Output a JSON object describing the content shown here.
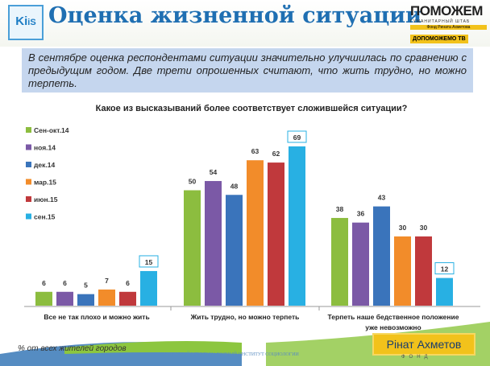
{
  "header": {
    "title": "Оценка жизненной ситуации",
    "logo_text": "KIIS",
    "brand": {
      "name": "ПОМОЖЕМ",
      "line2": "ГУМАНИТАРНЫЙ ШТАБ",
      "line3": "Фонд Рината Ахметова",
      "line4": "ДОПОМОЖЕМО ТВ"
    }
  },
  "note": "В сентябре оценка респондентами ситуации значительно улучшилась по сравнению с предыдущим годом. Две трети опрошенных считают, что жить трудно, но можно терпеть.",
  "footer": {
    "unit_note": "% от всех жителей городов",
    "institute": "КИЕВСКИЙ МЕЖДУНАРОДНЫЙ ИНСТИТУТ СОЦИОЛОГИИ",
    "fund_name": "Рінат Ахметов",
    "fund_sub": "ФОНД"
  },
  "chart_data": {
    "type": "bar",
    "title": "Какое из высказываний более соответствует сложившейся ситуации?",
    "categories": [
      "Все не так плохо и можно жить",
      "Жить трудно, но можно терпеть",
      "Терпеть наше бедственное положение уже невозможно"
    ],
    "series": [
      {
        "name": "Сен-окт.14",
        "color": "#8cbd3f",
        "values": [
          6,
          50,
          38
        ]
      },
      {
        "name": "ноя.14",
        "color": "#7b59a6",
        "values": [
          6,
          54,
          36
        ]
      },
      {
        "name": "дек.14",
        "color": "#3a74bb",
        "values": [
          5,
          48,
          43
        ]
      },
      {
        "name": "мар.15",
        "color": "#f28c2a",
        "values": [
          7,
          63,
          30
        ]
      },
      {
        "name": "июн.15",
        "color": "#c0393c",
        "values": [
          6,
          62,
          30
        ]
      },
      {
        "name": "сен.15",
        "color": "#28b0e3",
        "values": [
          15,
          69,
          12
        ]
      }
    ],
    "ylim": [
      0,
      69
    ],
    "legend": "left",
    "grid": false
  }
}
